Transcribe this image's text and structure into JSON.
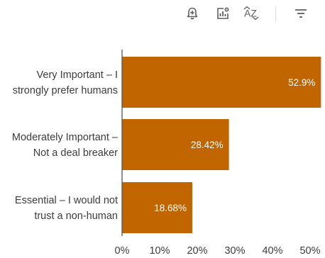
{
  "toolbar": {
    "icons": [
      "add-alert-icon",
      "chart-settings-icon",
      "sort-az-icon",
      "filter-icon"
    ],
    "sort_text": "AZ"
  },
  "colors": {
    "bar": "#c06500",
    "axis": "#555555",
    "text": "#3c3c3c",
    "bar_label": "#ffffff"
  },
  "chart_data": {
    "type": "bar",
    "orientation": "horizontal",
    "categories": [
      [
        "Very Important – I",
        "strongly prefer humans"
      ],
      [
        "Moderately Important –",
        "Not a deal breaker"
      ],
      [
        "Essential – I would not",
        "trust a non-human"
      ]
    ],
    "values": [
      52.9,
      28.42,
      18.68
    ],
    "value_labels": [
      "52.9%",
      "28.42%",
      "18.68%"
    ],
    "xlim": [
      0,
      50
    ],
    "xticks": [
      0,
      10,
      20,
      30,
      40,
      50
    ],
    "xtick_labels": [
      "0%",
      "10%",
      "20%",
      "30%",
      "40%",
      "50%"
    ],
    "title": "",
    "xlabel": "",
    "ylabel": "",
    "grid": false,
    "legend": "none"
  }
}
